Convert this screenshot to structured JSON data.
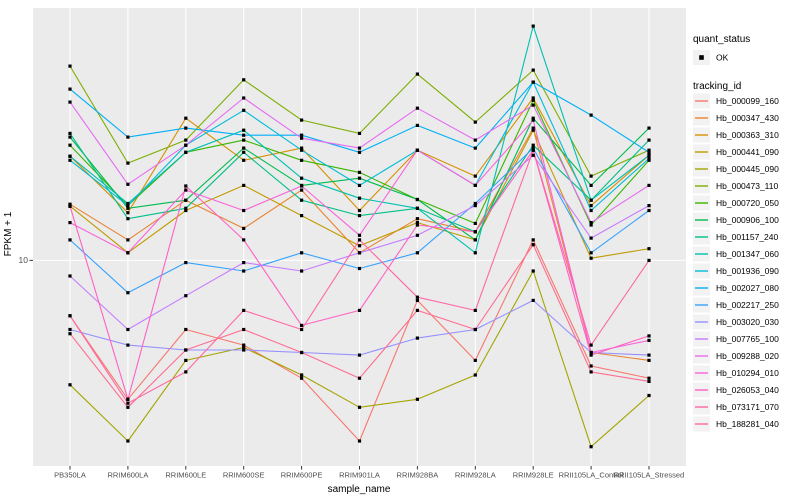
{
  "chart_data": {
    "type": "line",
    "title": "",
    "xlabel": "sample_name",
    "ylabel": "FPKM + 1",
    "y_scale": "log10",
    "ylim": [
      1.6,
      94.8
    ],
    "y_ticks": [
      {
        "value": 10,
        "label": "10"
      }
    ],
    "grid": "major-only, white on grey panel",
    "legend_position": "right",
    "panel_bg": "#EBEBEB",
    "grid_color": "#FFFFFF",
    "tick_color": "#333333",
    "tick_label_color": "#4D4D4D",
    "marker": {
      "shape": "square",
      "color": "#000000",
      "meaning": "quant_status OK"
    },
    "categories": [
      "PB350LA",
      "RRIM600LA",
      "RRIM600LE",
      "RRIM600SE",
      "RRIM600PE",
      "RRIM901LA",
      "RRIM928BA",
      "RRIM928LA",
      "RRIM928LE",
      "RRII105LA_Control",
      "RRII105LA_Stressed"
    ],
    "series": [
      {
        "name": "Hb_000099_160",
        "color": "#F8766D",
        "values": [
          6.1,
          2.9,
          5.4,
          4.7,
          3.5,
          2.0,
          7.0,
          4.1,
          12.0,
          3.9,
          3.5
        ]
      },
      {
        "name": "Hb_000347_430",
        "color": "#EA8331",
        "values": [
          16.5,
          12.0,
          17.1,
          13.3,
          18.7,
          10.7,
          14.5,
          12.9,
          32.5,
          4.4,
          4.1
        ]
      },
      {
        "name": "Hb_000363_310",
        "color": "#D89000",
        "values": [
          25.3,
          15.3,
          35.5,
          24.4,
          27.2,
          15.6,
          26.7,
          21.2,
          42.5,
          16.3,
          25.5
        ]
      },
      {
        "name": "Hb_000441_090",
        "color": "#C09B00",
        "values": [
          16.2,
          10.7,
          15.6,
          19.5,
          14.9,
          11.4,
          14.0,
          12.0,
          31.9,
          10.2,
          11.1
        ]
      },
      {
        "name": "Hb_000445_090",
        "color": "#A3A500",
        "values": [
          3.3,
          2.0,
          4.1,
          4.6,
          3.6,
          2.7,
          2.9,
          3.6,
          9.1,
          1.9,
          3.0
        ]
      },
      {
        "name": "Hb_000473_110",
        "color": "#7CAE00",
        "values": [
          56.5,
          23.8,
          29.2,
          50.0,
          34.9,
          31.0,
          52.6,
          34.3,
          54.5,
          21.2,
          26.7
        ]
      },
      {
        "name": "Hb_000720_050",
        "color": "#39B600",
        "values": [
          27.9,
          16.3,
          26.2,
          29.2,
          24.4,
          21.9,
          17.2,
          13.9,
          41.7,
          13.7,
          24.4
        ]
      },
      {
        "name": "Hb_000906_100",
        "color": "#00BB4E",
        "values": [
          30.0,
          15.9,
          17.1,
          27.2,
          19.5,
          20.8,
          17.2,
          12.0,
          35.5,
          19.5,
          32.5
        ]
      },
      {
        "name": "Hb_001157_240",
        "color": "#00C087",
        "values": [
          31.0,
          14.5,
          15.9,
          26.2,
          17.1,
          14.9,
          15.9,
          12.9,
          27.9,
          17.1,
          29.2
        ]
      },
      {
        "name": "Hb_001347_060",
        "color": "#00C0B2",
        "values": [
          25.3,
          16.6,
          26.2,
          31.9,
          20.8,
          17.4,
          15.9,
          10.7,
          80.7,
          17.1,
          25.5
        ]
      },
      {
        "name": "Hb_001936_090",
        "color": "#00BCD8",
        "values": [
          24.4,
          16.3,
          27.9,
          38.1,
          26.7,
          19.5,
          26.7,
          19.5,
          49.0,
          15.6,
          24.8
        ]
      },
      {
        "name": "Hb_002027_080",
        "color": "#00B0F6",
        "values": [
          46.0,
          30.0,
          32.5,
          30.5,
          30.5,
          26.2,
          33.3,
          27.2,
          49.0,
          36.5,
          26.2
        ]
      },
      {
        "name": "Hb_002217_250",
        "color": "#35A2FF",
        "values": [
          12.0,
          7.5,
          9.8,
          9.1,
          10.7,
          9.3,
          10.7,
          16.6,
          27.2,
          10.7,
          15.6
        ]
      },
      {
        "name": "Hb_003020_030",
        "color": "#9590FF",
        "values": [
          5.4,
          4.7,
          4.5,
          4.5,
          4.4,
          4.3,
          5.0,
          5.4,
          7.0,
          4.4,
          4.3
        ]
      },
      {
        "name": "Hb_007765_100",
        "color": "#C77CFF",
        "values": [
          8.7,
          5.4,
          7.3,
          9.8,
          9.1,
          10.7,
          12.5,
          16.3,
          25.5,
          12.2,
          16.3
        ]
      },
      {
        "name": "Hb_009288_020",
        "color": "#E76BF3",
        "values": [
          41.0,
          19.7,
          27.9,
          42.5,
          29.7,
          27.2,
          38.8,
          29.2,
          39.9,
          14.0,
          19.5
        ]
      },
      {
        "name": "Hb_010294_010",
        "color": "#FA62DB",
        "values": [
          14.0,
          10.7,
          18.7,
          15.6,
          19.4,
          12.5,
          26.7,
          19.5,
          34.9,
          4.4,
          4.9
        ]
      },
      {
        "name": "Hb_026053_040",
        "color": "#FF61C3",
        "values": [
          16.2,
          2.9,
          19.4,
          12.0,
          5.6,
          6.4,
          13.7,
          12.9,
          26.7,
          4.3,
          5.1
        ]
      },
      {
        "name": "Hb_073171_070",
        "color": "#FF67A4",
        "values": [
          6.1,
          2.8,
          3.7,
          6.4,
          5.4,
          12.0,
          7.2,
          6.4,
          26.7,
          4.7,
          10.0
        ]
      },
      {
        "name": "Hb_188281_040",
        "color": "#FF6C90",
        "values": [
          5.2,
          2.7,
          4.5,
          5.4,
          4.4,
          3.5,
          6.4,
          5.4,
          11.5,
          3.7,
          3.4
        ]
      }
    ]
  },
  "legend": {
    "quant_status": {
      "title": "quant_status",
      "items": [
        {
          "label": "OK",
          "symbol": "black-square"
        }
      ]
    },
    "tracking_id": {
      "title": "tracking_id"
    },
    "key_bg": "#F2F2F2"
  }
}
